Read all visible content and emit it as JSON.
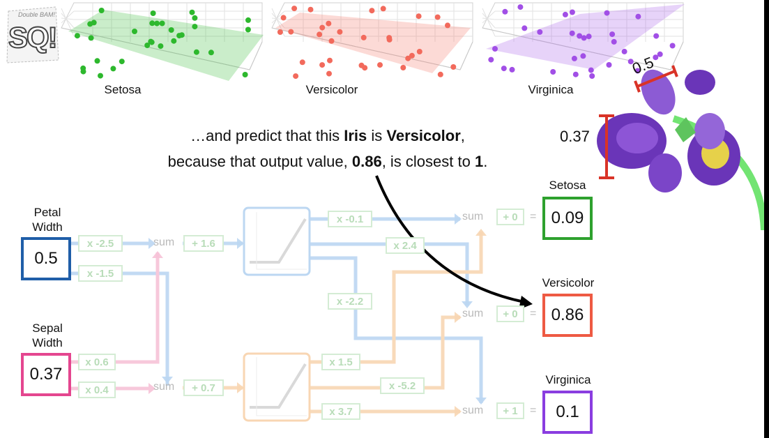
{
  "logo": {
    "text": "SQ!",
    "sub": "Double BAM!"
  },
  "plots": [
    {
      "label": "Setosa",
      "color": "#2db82d"
    },
    {
      "label": "Versicolor",
      "color": "#f26a5c"
    },
    {
      "label": "Virginica",
      "color": "#a14fe6"
    }
  ],
  "caption": {
    "line1_pre": "…and predict that this ",
    "line1_iris": "Iris",
    "line1_mid": " is ",
    "line1_class": "Versicolor",
    "line1_end": ",",
    "line2_pre": "because that output value, ",
    "line2_value": "0.86",
    "line2_mid": ", is closest to ",
    "line2_target": "1",
    "line2_end": "."
  },
  "flower": {
    "petal_width": "0.5",
    "sepal_width": "0.37"
  },
  "inputs": {
    "petal": {
      "label_line1": "Petal",
      "label_line2": "Width",
      "value": "0.5",
      "color": "#1f5ea8"
    },
    "sepal": {
      "label_line1": "Sepal",
      "label_line2": "Width",
      "value": "0.37",
      "color": "#e4468f"
    }
  },
  "network": {
    "w_petal_top": "x -2.5",
    "w_petal_bottom": "x -1.5",
    "w_sepal_top": "x 0.6",
    "w_sepal_bottom": "x 0.4",
    "sum": "sum",
    "bias_top": "+ 1.6",
    "bias_bottom": "+ 0.7",
    "w_top_setosa": "x -0.1",
    "w_top_versicolor": "x 2.4",
    "w_top_virginica": "x -2.2",
    "w_bottom_setosa": "x 1.5",
    "w_bottom_versicolor": "x -5.2",
    "w_bottom_virginica": "x 3.7",
    "out_bias_setosa": "+ 0",
    "out_bias_versicolor": "+ 0",
    "out_bias_virginica": "+ 1",
    "equals": "="
  },
  "outputs": {
    "setosa": {
      "label": "Setosa",
      "value": "0.09",
      "color": "#2ea12e"
    },
    "versicolor": {
      "label": "Versicolor",
      "value": "0.86",
      "color": "#ee5a43"
    },
    "virginica": {
      "label": "Virginica",
      "value": "0.1",
      "color": "#8a3de0"
    }
  }
}
